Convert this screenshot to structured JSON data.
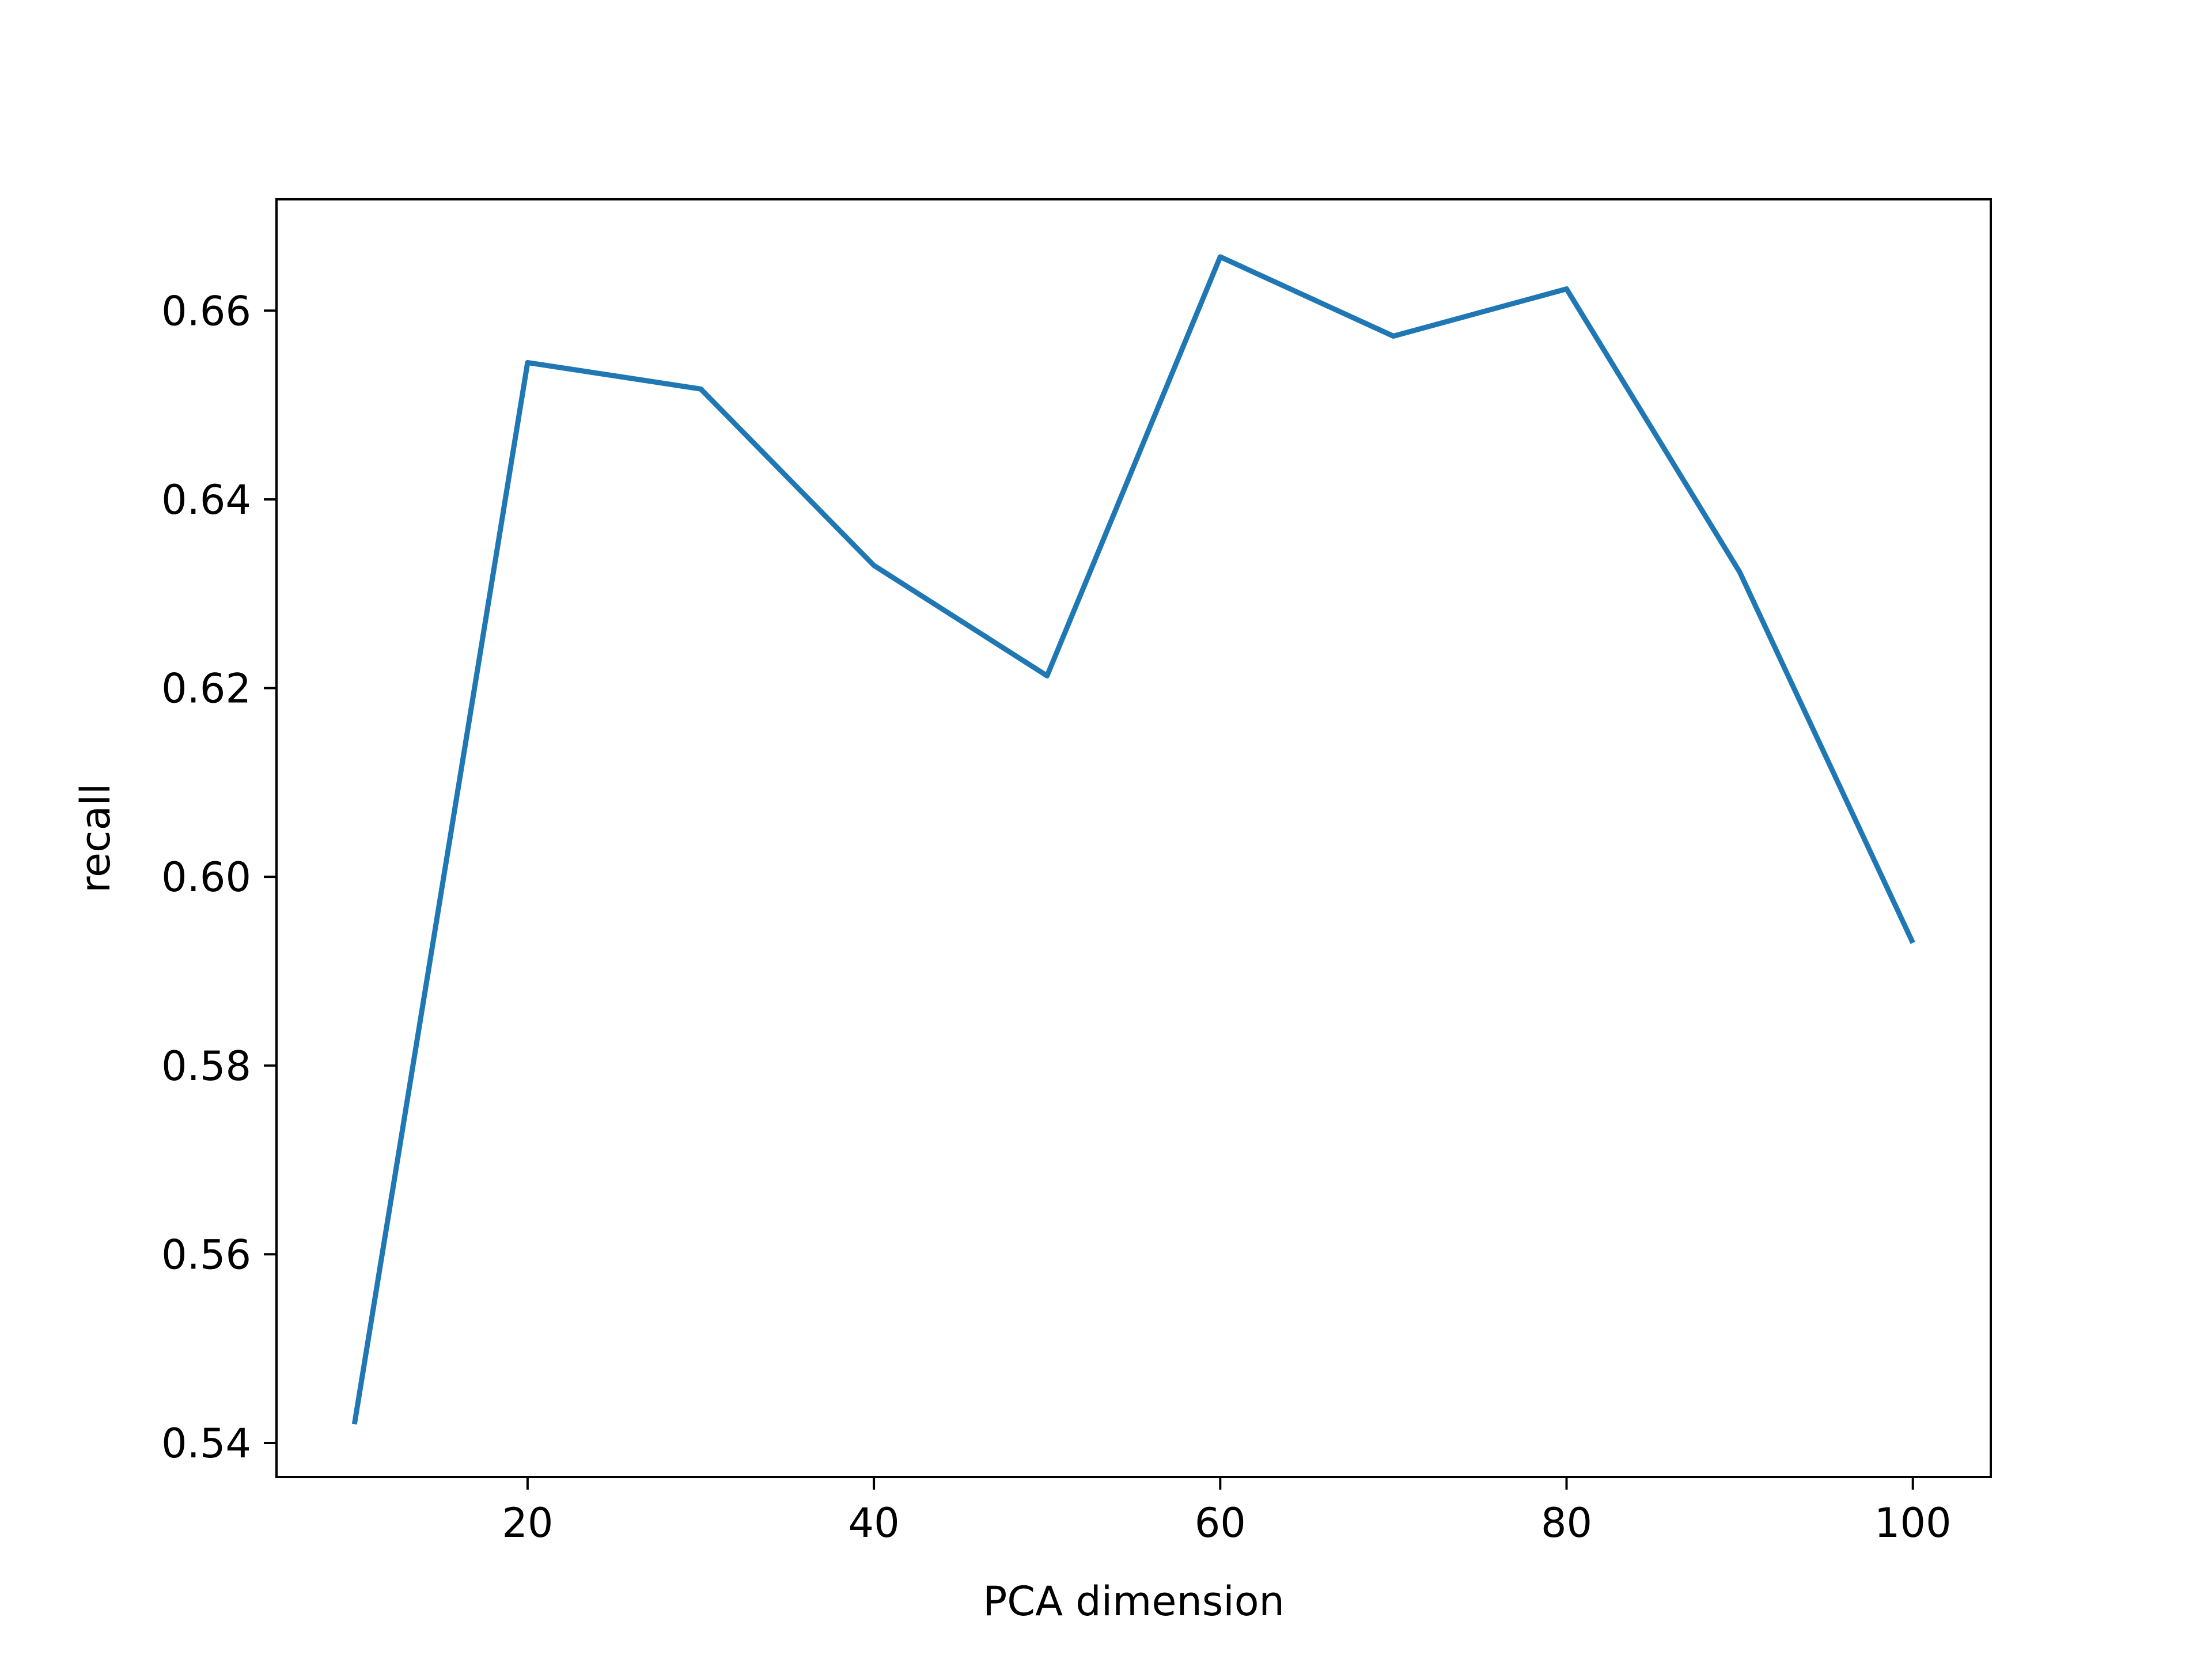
{
  "chart_data": {
    "type": "line",
    "title": "",
    "xlabel": "PCA dimension",
    "ylabel": "recall",
    "x": [
      10,
      20,
      30,
      40,
      50,
      60,
      70,
      80,
      90,
      100
    ],
    "series": [
      {
        "values": [
          0.542,
          0.6545,
          0.6517,
          0.633,
          0.6213,
          0.6657,
          0.6573,
          0.6623,
          0.6323,
          0.593
        ]
      }
    ],
    "xlim": [
      5.5,
      104.5
    ],
    "ylim": [
      0.5364,
      0.6718
    ],
    "xticks": [
      20,
      40,
      60,
      80,
      100
    ],
    "xtick_labels": [
      "20",
      "40",
      "60",
      "80",
      "100"
    ],
    "yticks": [
      0.54,
      0.56,
      0.58,
      0.6,
      0.62,
      0.64,
      0.66
    ],
    "ytick_labels": [
      "0.54",
      "0.56",
      "0.58",
      "0.60",
      "0.62",
      "0.64",
      "0.66"
    ],
    "grid": false,
    "legend": "none",
    "colors": {
      "line": "#1f77b4",
      "axes": "#000000",
      "background": "#ffffff"
    }
  }
}
